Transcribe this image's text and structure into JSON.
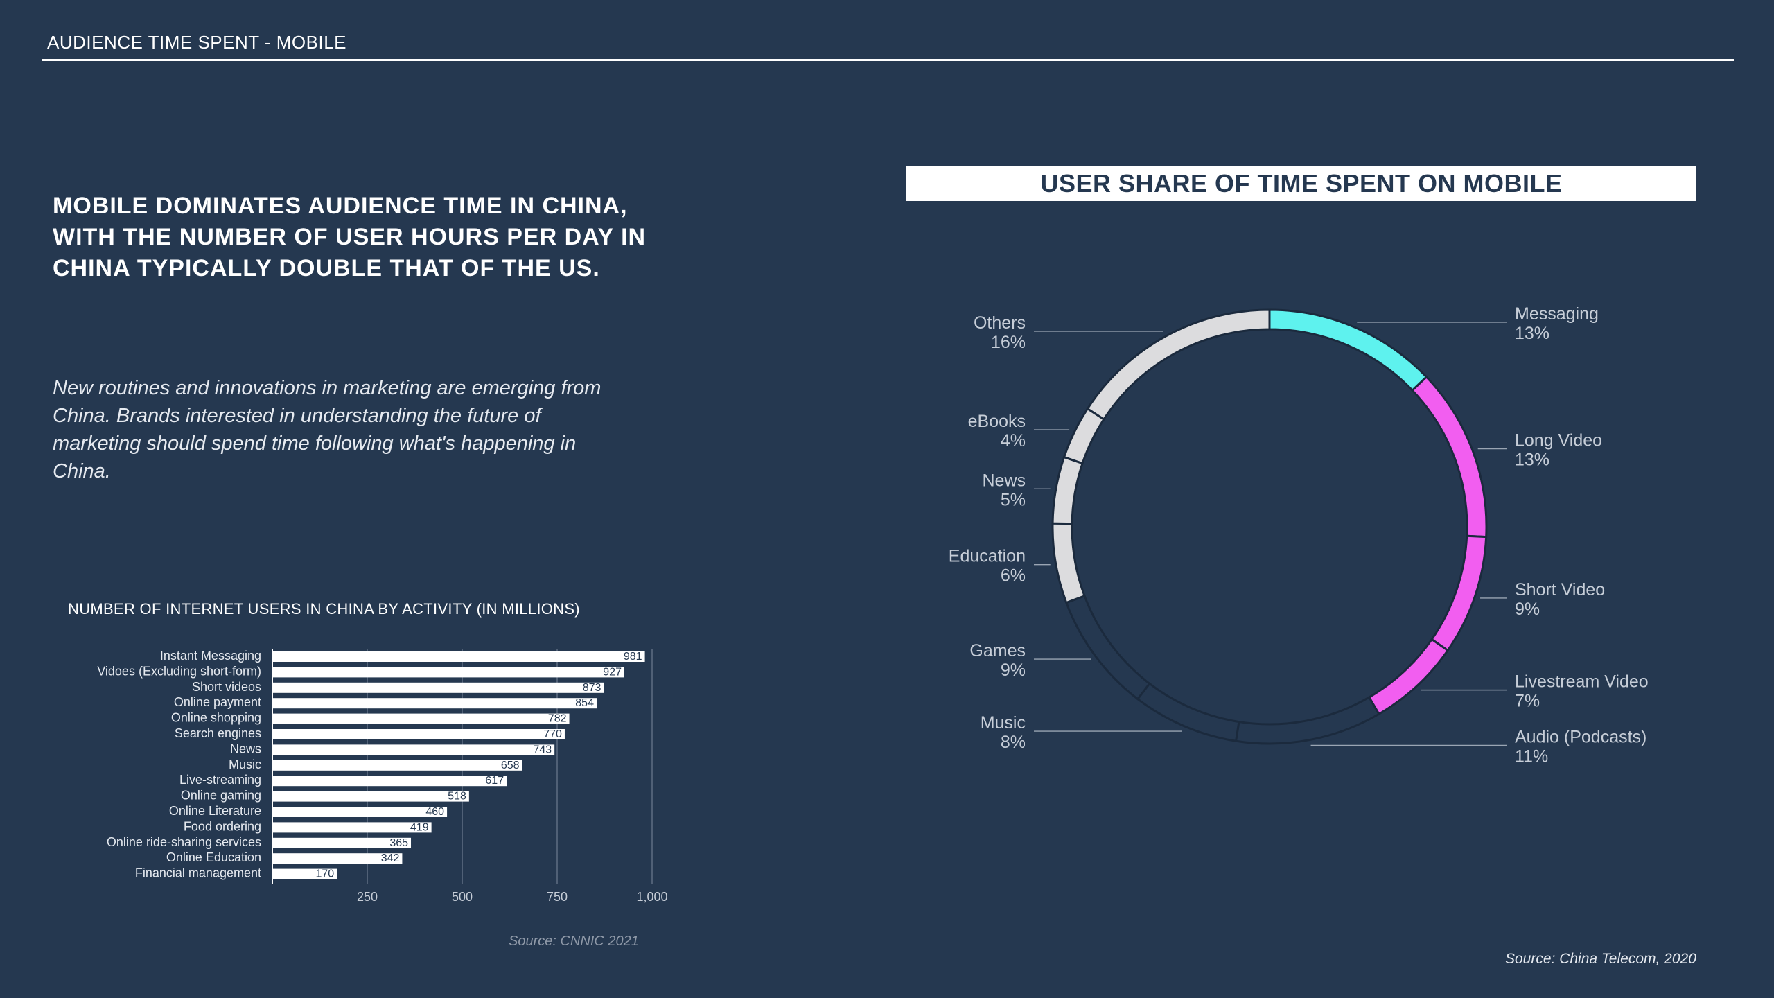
{
  "header": {
    "title": "AUDIENCE TIME SPENT - MOBILE"
  },
  "intro": {
    "headline": "MOBILE DOMINATES AUDIENCE TIME IN CHINA, WITH THE NUMBER OF USER HOURS PER DAY IN CHINA TYPICALLY DOUBLE THAT OF THE US.",
    "body": "New routines and innovations in marketing are emerging from China. Brands interested in understanding the future of marketing should spend time following what's happening in China."
  },
  "chart_data": [
    {
      "type": "bar",
      "orientation": "horizontal",
      "title": "NUMBER OF INTERNET USERS IN CHINA BY ACTIVITY (IN MILLIONS)",
      "categories": [
        "Instant Messaging",
        "Vidoes (Excluding short-form)",
        "Short videos",
        "Online payment",
        "Online shopping",
        "Search engines",
        "News",
        "Music",
        "Live-streaming",
        "Online gaming",
        "Online Literature",
        "Food ordering",
        "Online ride-sharing services",
        "Online Education",
        "Financial management"
      ],
      "values": [
        981,
        927,
        873,
        854,
        782,
        770,
        743,
        658,
        617,
        518,
        460,
        419,
        365,
        342,
        170
      ],
      "xlim": [
        0,
        1000
      ],
      "xticks": [
        250,
        500,
        750,
        1000
      ],
      "xtick_labels": [
        "250",
        "500",
        "750",
        "1,000"
      ],
      "grid": true,
      "source": "Source: CNNIC 2021"
    },
    {
      "type": "pie",
      "style": "donut",
      "title": "USER SHARE OF TIME SPENT ON MOBILE",
      "slices": [
        {
          "name": "Messaging",
          "value": 13,
          "label": "13%",
          "color": "#5ef2ee"
        },
        {
          "name": "Long Video",
          "value": 13,
          "label": "13%",
          "color": "#f25ef0"
        },
        {
          "name": "Short Video",
          "value": 9,
          "label": "9%",
          "color": "#f25ef0"
        },
        {
          "name": "Livestream Video",
          "value": 7,
          "label": "7%",
          "color": "#f25ef0"
        },
        {
          "name": "Audio (Podcasts)",
          "value": 11,
          "label": "11%",
          "color": "#253850"
        },
        {
          "name": "Music",
          "value": 8,
          "label": "8%",
          "color": "#253850"
        },
        {
          "name": "Games",
          "value": 9,
          "label": "9%",
          "color": "#253850"
        },
        {
          "name": "Education",
          "value": 6,
          "label": "6%",
          "color": "#dcdcde"
        },
        {
          "name": "News",
          "value": 5,
          "label": "5%",
          "color": "#dcdcde"
        },
        {
          "name": "eBooks",
          "value": 4,
          "label": "4%",
          "color": "#dcdcde"
        },
        {
          "name": "Others",
          "value": 16,
          "label": "16%",
          "color": "#dcdcde"
        }
      ],
      "source": "Source: China Telecom, 2020"
    }
  ],
  "colors": {
    "background": "#253850",
    "bar_fill": "#ffffff",
    "text": "#ffffff",
    "muted": "#8f99a8"
  }
}
